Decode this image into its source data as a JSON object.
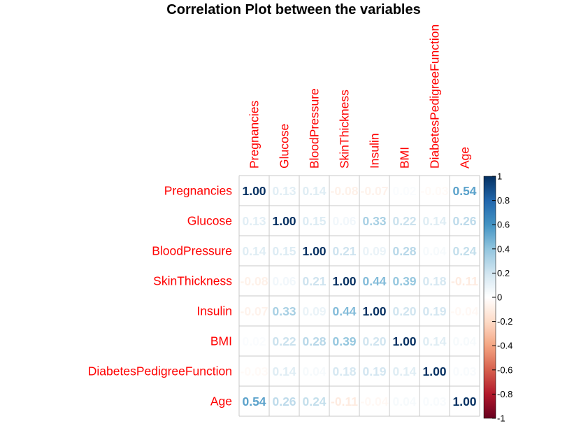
{
  "chart_data": {
    "type": "heatmap",
    "title": "Correlation Plot between the variables",
    "variables": [
      "Pregnancies",
      "Glucose",
      "BloodPressure",
      "SkinThickness",
      "Insulin",
      "BMI",
      "DiabetesPedigreeFunction",
      "Age"
    ],
    "matrix": [
      [
        1.0,
        0.13,
        0.14,
        -0.08,
        -0.07,
        0.02,
        -0.03,
        0.54
      ],
      [
        0.13,
        1.0,
        0.15,
        0.06,
        0.33,
        0.22,
        0.14,
        0.26
      ],
      [
        0.14,
        0.15,
        1.0,
        0.21,
        0.09,
        0.28,
        0.04,
        0.24
      ],
      [
        -0.08,
        0.06,
        0.21,
        1.0,
        0.44,
        0.39,
        0.18,
        -0.11
      ],
      [
        -0.07,
        0.33,
        0.09,
        0.44,
        1.0,
        0.2,
        0.19,
        -0.04
      ],
      [
        0.02,
        0.22,
        0.28,
        0.39,
        0.2,
        1.0,
        0.14,
        0.04
      ],
      [
        -0.03,
        0.14,
        0.04,
        0.18,
        0.19,
        0.14,
        1.0,
        0.03
      ],
      [
        0.54,
        0.26,
        0.24,
        -0.11,
        -0.04,
        0.04,
        0.03,
        1.0
      ]
    ],
    "value_labels": [
      [
        "1.00",
        "0.13",
        "0.14",
        "-0.08",
        "-0.07",
        "0.02",
        "-0.03",
        "0.54"
      ],
      [
        "0.13",
        "1.00",
        "0.15",
        "0.06",
        "0.33",
        "0.22",
        "0.14",
        "0.26"
      ],
      [
        "0.14",
        "0.15",
        "1.00",
        "0.21",
        "0.09",
        "0.28",
        "0.04",
        "0.24"
      ],
      [
        "-0.08",
        "0.06",
        "0.21",
        "1.00",
        "0.44",
        "0.39",
        "0.18",
        "-0.11"
      ],
      [
        "-0.07",
        "0.33",
        "0.09",
        "0.44",
        "1.00",
        "0.20",
        "0.19",
        "-0.04"
      ],
      [
        "0.02",
        "0.22",
        "0.28",
        "0.39",
        "0.20",
        "1.00",
        "0.14",
        "0.04"
      ],
      [
        "-0.03",
        "0.14",
        "0.04",
        "0.18",
        "0.19",
        "0.14",
        "1.00",
        "0.03"
      ],
      [
        "0.54",
        "0.26",
        "0.24",
        "-0.11",
        "-0.04",
        "0.04",
        "0.03",
        "1.00"
      ]
    ],
    "label_color": "#FF0000",
    "grid_color": "#C8C8C8",
    "colorbar": {
      "range": [
        -1,
        1
      ],
      "ticks": [
        "1",
        "0.8",
        "0.6",
        "0.4",
        "0.2",
        "0",
        "-0.2",
        "-0.4",
        "-0.6",
        "-0.8",
        "-1"
      ],
      "tick_values": [
        1,
        0.8,
        0.6,
        0.4,
        0.2,
        0,
        -0.2,
        -0.4,
        -0.6,
        -0.8,
        -1
      ],
      "placement": "right",
      "palette": [
        "#67001F",
        "#B2182B",
        "#D6604D",
        "#F4A582",
        "#FDDBC7",
        "#FFFFFF",
        "#D1E5F0",
        "#92C5DE",
        "#4393C3",
        "#2166AC",
        "#053061"
      ]
    }
  }
}
